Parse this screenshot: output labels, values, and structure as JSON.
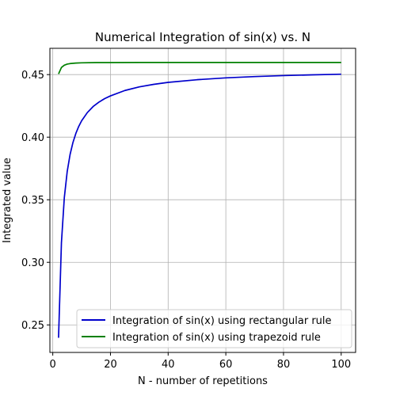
{
  "chart_data": {
    "type": "line",
    "title": "Numerical Integration of sin(x) vs. N",
    "xlabel": "N - number of repetitions",
    "ylabel": "Integrated value",
    "xlim": [
      -1,
      105
    ],
    "ylim": [
      0.228,
      0.471
    ],
    "xticks": [
      0,
      20,
      40,
      60,
      80,
      100
    ],
    "xtick_labels": [
      "0",
      "20",
      "40",
      "60",
      "80",
      "100"
    ],
    "yticks": [
      0.25,
      0.3,
      0.35,
      0.4,
      0.45
    ],
    "ytick_labels": [
      "0.25",
      "0.30",
      "0.35",
      "0.40",
      "0.45"
    ],
    "grid": true,
    "legend_position": "lower-right",
    "series": [
      {
        "name": "Integration of sin(x) using rectangular rule",
        "color": "#0000cc",
        "x": [
          2,
          3,
          4,
          5,
          6,
          7,
          8,
          9,
          10,
          12,
          14,
          16,
          18,
          20,
          25,
          30,
          35,
          40,
          50,
          60,
          70,
          80,
          90,
          100
        ],
        "y": [
          0.2397,
          0.3157,
          0.3517,
          0.3725,
          0.3862,
          0.3958,
          0.403,
          0.4086,
          0.4131,
          0.4197,
          0.4245,
          0.428,
          0.4308,
          0.433,
          0.4373,
          0.4402,
          0.4422,
          0.4438,
          0.4459,
          0.4474,
          0.4484,
          0.4492,
          0.4498,
          0.4503
        ]
      },
      {
        "name": "Integration of sin(x) using trapezoid rule",
        "color": "#008000",
        "x": [
          2,
          3,
          4,
          5,
          6,
          8,
          10,
          15,
          20,
          30,
          40,
          50,
          60,
          70,
          80,
          90,
          100
        ],
        "y": [
          0.4505,
          0.4557,
          0.4575,
          0.4584,
          0.4588,
          0.4592,
          0.4594,
          0.4596,
          0.4596,
          0.4597,
          0.4597,
          0.4597,
          0.4597,
          0.4597,
          0.4597,
          0.4597,
          0.4597
        ]
      }
    ]
  }
}
